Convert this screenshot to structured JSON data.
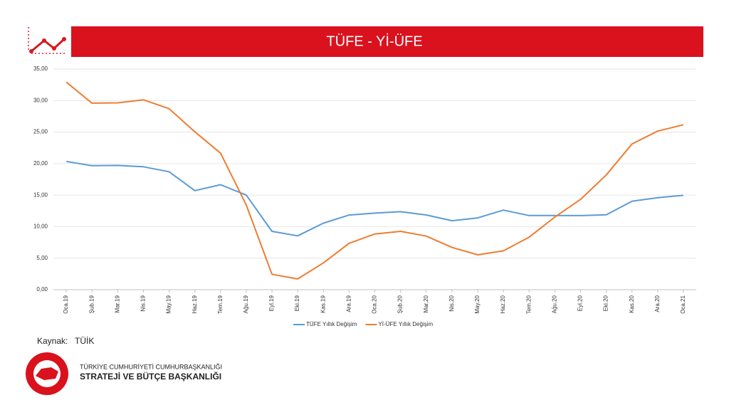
{
  "chart_data": {
    "type": "line",
    "title": "TÜFE - Yİ-ÜFE",
    "categories": [
      "Oca.19",
      "Şub.19",
      "Mar.19",
      "Nis.19",
      "May.19",
      "Haz.19",
      "Tem.19",
      "Ağu.19",
      "Eyl.19",
      "Eki.19",
      "Kas.19",
      "Ara.19",
      "Oca.20",
      "Şub.20",
      "Mar.20",
      "Nis.20",
      "May.20",
      "Haz.20",
      "Tem.20",
      "Ağu.20",
      "Eyl.20",
      "Eki.20",
      "Kas.20",
      "Ara.20",
      "Oca.21"
    ],
    "series": [
      {
        "name": "TÜFE Yıllık Değişim",
        "color": "#5b9bd5",
        "values": [
          20.35,
          19.67,
          19.71,
          19.5,
          18.71,
          15.72,
          16.65,
          15.01,
          9.26,
          8.55,
          10.56,
          11.84,
          12.15,
          12.37,
          11.86,
          10.94,
          11.39,
          12.62,
          11.76,
          11.77,
          11.75,
          11.89,
          14.03,
          14.6,
          14.97
        ]
      },
      {
        "name": "Yİ-ÜFE Yıllık Değişim",
        "color": "#ed7d31",
        "values": [
          32.93,
          29.59,
          29.64,
          30.12,
          28.71,
          25.04,
          21.66,
          13.45,
          2.45,
          1.7,
          4.26,
          7.36,
          8.84,
          9.26,
          8.5,
          6.71,
          5.53,
          6.17,
          8.33,
          11.53,
          14.33,
          18.2,
          23.11,
          25.15,
          26.16
        ]
      }
    ],
    "ylim": [
      0,
      35
    ],
    "yticks": [
      {
        "value": 0,
        "label": "0,00"
      },
      {
        "value": 5,
        "label": "5,00"
      },
      {
        "value": 10,
        "label": "10,00"
      },
      {
        "value": 15,
        "label": "15,00"
      },
      {
        "value": 20,
        "label": "20,00"
      },
      {
        "value": 25,
        "label": "25,00"
      },
      {
        "value": 30,
        "label": "30,00"
      },
      {
        "value": 35,
        "label": "35,00"
      }
    ],
    "grid": true,
    "legend": "bottom"
  },
  "source_label": "Kaynak:",
  "source": "TÜİK",
  "org_line1": "TÜRKİYE CUMHURİYETİ CUMHURBAŞKANLIĞI",
  "org_line2": "STRATEJİ VE BÜTÇE BAŞKANLIĞI"
}
